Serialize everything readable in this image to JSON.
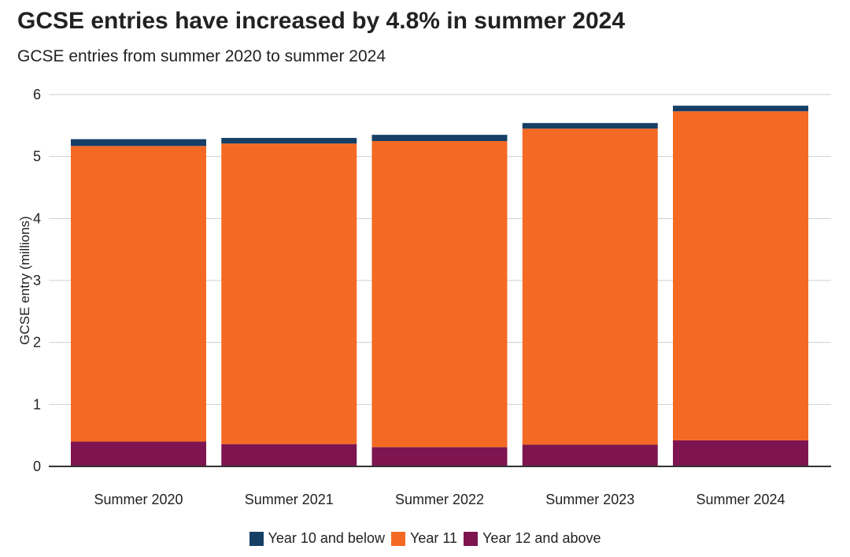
{
  "title": "GCSE entries have increased by 4.8% in summer 2024",
  "subtitle": "GCSE entries from summer 2020 to summer 2024",
  "chart_data": {
    "type": "bar",
    "stacked": true,
    "title": "GCSE entries have increased by 4.8% in summer 2024",
    "subtitle": "GCSE entries from summer 2020 to summer 2024",
    "xlabel": "",
    "ylabel": "GCSE entry (millions)",
    "ylim": [
      0,
      6
    ],
    "yticks": [
      "0",
      "1",
      "2",
      "3",
      "4",
      "5",
      "6"
    ],
    "grid": true,
    "categories": [
      "Summer 2020",
      "Summer 2021",
      "Summer 2022",
      "Summer 2023",
      "Summer 2024"
    ],
    "series": [
      {
        "name": "Year 12 and above",
        "color": "#7e1550",
        "values": [
          0.4,
          0.36,
          0.31,
          0.35,
          0.42
        ]
      },
      {
        "name": "Year 11",
        "color": "#f46a25",
        "values": [
          4.77,
          4.85,
          4.94,
          5.1,
          5.31
        ]
      },
      {
        "name": "Year 10 and below",
        "color": "#163f66",
        "values": [
          0.11,
          0.09,
          0.1,
          0.09,
          0.09
        ]
      }
    ],
    "legend": {
      "position": "bottom",
      "order": [
        "Year 10 and below",
        "Year 11",
        "Year 12 and above"
      ]
    }
  }
}
